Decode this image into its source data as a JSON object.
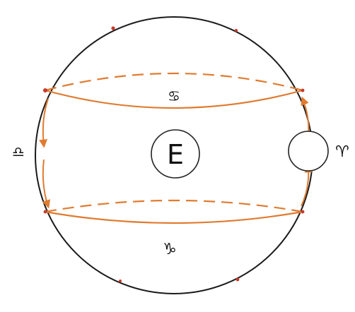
{
  "diagram": {
    "earth_label": "E",
    "sun_label": "♈︎",
    "signs": {
      "cancer": "♋︎",
      "libra": "♎︎",
      "aries": "♈︎",
      "capricorn": "♑︎"
    },
    "colors": {
      "celestial_sphere": "#1a1a1a",
      "sun_path": "#e07b30",
      "points": "#c83a2a",
      "circle_outline": "#222222",
      "background": "#ffffff"
    }
  }
}
